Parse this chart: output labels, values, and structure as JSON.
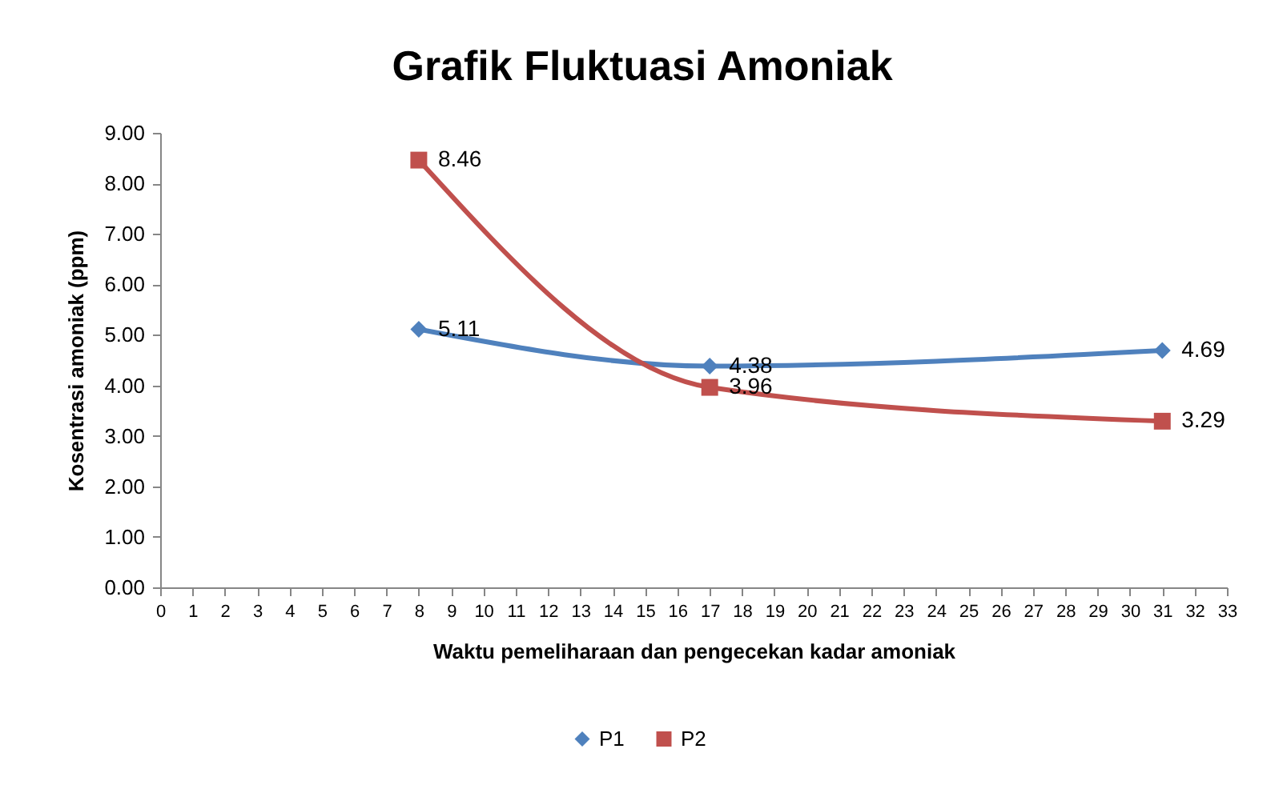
{
  "chart_data": {
    "type": "line",
    "title": "Grafik Fluktuasi Amoniak",
    "xlabel": "Waktu pemeliharaan dan pengecekan kadar amoniak",
    "ylabel": "Kosentrasi amoniak (ppm)",
    "x": [
      8,
      17,
      31
    ],
    "series": [
      {
        "name": "P1",
        "color": "#4f81bd",
        "marker": "diamond",
        "values": [
          5.11,
          4.38,
          4.69
        ]
      },
      {
        "name": "P2",
        "color": "#c0504d",
        "marker": "square",
        "values": [
          8.46,
          3.96,
          3.29
        ]
      }
    ],
    "xlim": [
      0,
      33
    ],
    "xticks": [
      0,
      1,
      2,
      3,
      4,
      5,
      6,
      7,
      8,
      9,
      10,
      11,
      12,
      13,
      14,
      15,
      16,
      17,
      18,
      19,
      20,
      21,
      22,
      23,
      24,
      25,
      26,
      27,
      28,
      29,
      30,
      31,
      32,
      33
    ],
    "ylim": [
      0,
      9
    ],
    "yticks": [
      {
        "value": 0,
        "label": "0.00"
      },
      {
        "value": 1,
        "label": "1.00"
      },
      {
        "value": 2,
        "label": "2.00"
      },
      {
        "value": 3,
        "label": "3.00"
      },
      {
        "value": 4,
        "label": "4.00"
      },
      {
        "value": 5,
        "label": "5.00"
      },
      {
        "value": 6,
        "label": "6.00"
      },
      {
        "value": 7,
        "label": "7.00"
      },
      {
        "value": 8,
        "label": "8.00"
      },
      {
        "value": 9,
        "label": "9.00"
      }
    ],
    "grid": false,
    "legend": "bottom",
    "data_labels": true,
    "line_style": "solid"
  }
}
